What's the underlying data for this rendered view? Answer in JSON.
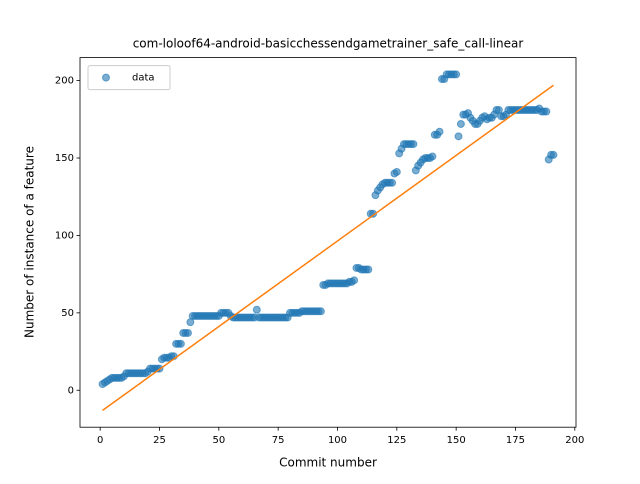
{
  "chart_data": {
    "type": "scatter",
    "title": "com-loloof64-android-basicchessendgametrainer_safe_call-linear",
    "xlabel": "Commit number",
    "ylabel": "Number of instance of a feature",
    "xlim": [
      -8.5,
      200.5
    ],
    "ylim": [
      -23.85,
      214.85
    ],
    "xticks": [
      0,
      25,
      50,
      75,
      100,
      125,
      150,
      175,
      200
    ],
    "yticks": [
      0,
      50,
      100,
      150,
      200
    ],
    "legend": "upper left",
    "series": [
      {
        "name": "data",
        "type": "scatter",
        "color": "#1f77b4",
        "x": [
          1,
          2,
          3,
          4,
          5,
          6,
          7,
          8,
          9,
          10,
          11,
          12,
          13,
          14,
          15,
          16,
          17,
          18,
          19,
          20,
          21,
          22,
          23,
          24,
          25,
          26,
          27,
          28,
          29,
          30,
          31,
          32,
          33,
          34,
          35,
          36,
          37,
          38,
          39,
          40,
          41,
          42,
          43,
          44,
          45,
          46,
          47,
          48,
          49,
          50,
          51,
          52,
          53,
          54,
          55,
          56,
          57,
          58,
          59,
          60,
          61,
          62,
          63,
          64,
          65,
          66,
          67,
          68,
          69,
          70,
          71,
          72,
          73,
          74,
          75,
          76,
          77,
          78,
          79,
          80,
          81,
          82,
          83,
          84,
          85,
          86,
          87,
          88,
          89,
          90,
          91,
          92,
          93,
          94,
          95,
          96,
          97,
          98,
          99,
          100,
          101,
          102,
          103,
          104,
          105,
          106,
          107,
          108,
          109,
          110,
          111,
          112,
          113,
          114,
          115,
          116,
          117,
          118,
          119,
          120,
          121,
          122,
          123,
          124,
          125,
          126,
          127,
          128,
          129,
          130,
          131,
          132,
          133,
          134,
          135,
          136,
          137,
          138,
          139,
          140,
          141,
          142,
          143,
          144,
          145,
          146,
          147,
          148,
          149,
          150,
          151,
          152,
          153,
          154,
          155,
          156,
          157,
          158,
          159,
          160,
          161,
          162,
          163,
          164,
          165,
          166,
          167,
          168,
          169,
          170,
          171,
          172,
          173,
          174,
          175,
          176,
          177,
          178,
          179,
          180,
          181,
          182,
          183,
          184,
          185,
          186,
          187,
          188,
          189,
          190,
          191
        ],
        "values": [
          4,
          5,
          6,
          7,
          8,
          8,
          8,
          8,
          8,
          9,
          11,
          11,
          11,
          11,
          11,
          11,
          11,
          11,
          11,
          12,
          14,
          14,
          14,
          14,
          14,
          20,
          21,
          21,
          21,
          22,
          22,
          30,
          30,
          30,
          37,
          37,
          37,
          44,
          48,
          48,
          48,
          48,
          48,
          48,
          48,
          48,
          48,
          48,
          48,
          48,
          50,
          50,
          50,
          50,
          48,
          47,
          47,
          47,
          47,
          47,
          47,
          47,
          47,
          47,
          47,
          52,
          47,
          47,
          47,
          47,
          47,
          47,
          47,
          47,
          47,
          47,
          47,
          47,
          47,
          50,
          50,
          50,
          50,
          50,
          51,
          51,
          51,
          51,
          51,
          51,
          51,
          51,
          51,
          68,
          68,
          69,
          69,
          69,
          69,
          69,
          69,
          69,
          69,
          69,
          70,
          70,
          71,
          79,
          79,
          78,
          78,
          78,
          78,
          114,
          114,
          126,
          129,
          131,
          133,
          134,
          134,
          134,
          134,
          140,
          141,
          153,
          156,
          159,
          159,
          159,
          159,
          159,
          142,
          145,
          147,
          149,
          150,
          150,
          150,
          151,
          165,
          165,
          167,
          201,
          201,
          204,
          204,
          204,
          204,
          204,
          164,
          172,
          178,
          178,
          179,
          176,
          174,
          172,
          172,
          174,
          176,
          177,
          175,
          176,
          176,
          178,
          181,
          181,
          177,
          177,
          178,
          181,
          181,
          181,
          181,
          181,
          181,
          181,
          181,
          181,
          181,
          181,
          181,
          181,
          182,
          180,
          180,
          180,
          149,
          152,
          152
        ]
      },
      {
        "type": "line",
        "color": "#ff7f0e",
        "x": [
          1,
          191
        ],
        "values": [
          -13,
          197
        ]
      }
    ]
  }
}
